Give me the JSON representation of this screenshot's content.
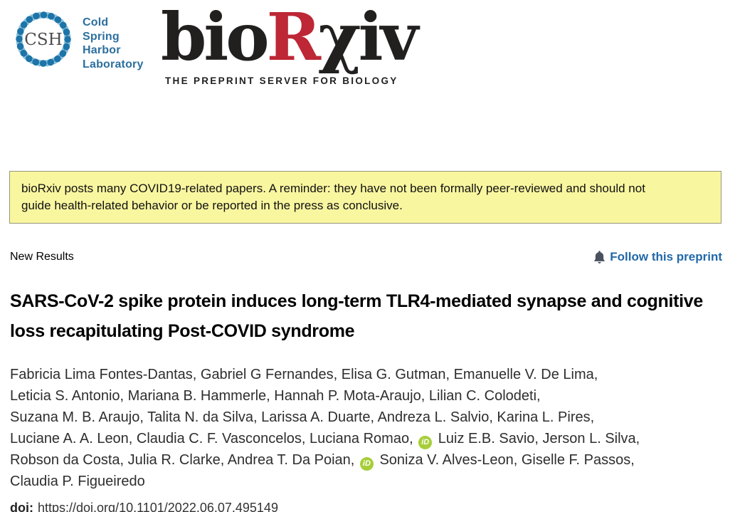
{
  "header": {
    "csh_logo": {
      "acronym": "CSH",
      "name_lines": [
        "Cold",
        "Spring",
        "Harbor",
        "Laboratory"
      ]
    },
    "biorxiv_logo": {
      "prefix": "bio",
      "r": "R",
      "chi": "χ",
      "suffix": "iv",
      "tagline": "THE PREPRINT SERVER FOR BIOLOGY"
    }
  },
  "banner": {
    "text": "bioRxiv posts many COVID19-related papers. A reminder: they have not been formally peer-reviewed and should not guide health-related behavior or be reported in the press as conclusive."
  },
  "content": {
    "section_label": "New Results",
    "follow_link_label": "Follow this preprint",
    "title": "SARS-CoV-2 spike protein induces long-term TLR4-mediated synapse and cognitive loss recapitulating Post-COVID syndrome",
    "doi_label": "doi:",
    "doi_value": "https://doi.org/10.1101/2022.06.07.495149"
  },
  "authors": {
    "orcid_icon_label": "iD",
    "lines": [
      "Fabricia Lima Fontes-Dantas, Gabriel G Fernandes, Elisa G. Gutman, Emanuelle V. De Lima,",
      "Leticia S. Antonio, Mariana B. Hammerle, Hannah P. Mota-Araujo, Lilian C. Colodeti,",
      "Suzana M. B. Araujo, Talita N. da Silva, Larissa A. Duarte, Andreza L. Salvio, Karina L. Pires,",
      "Luciane A. A. Leon, Claudia C. F. Vasconcelos, Luciana Romao, {orcid} Luiz E.B. Savio, Jerson L. Silva,",
      "Robson da Costa, Julia R. Clarke, Andrea T. Da Poian, {orcid} Soniza V. Alves-Leon, Giselle F. Passos,",
      "Claudia P. Figueiredo"
    ]
  },
  "colors": {
    "biorxiv_red": "#bd2736",
    "csh_blue": "#2c6f9e",
    "link_blue": "#2268a9",
    "orcid_green": "#a6ce39",
    "banner_background": "#f9f6a0",
    "banner_border": "#97977b",
    "bell_gray": "#49525e"
  }
}
